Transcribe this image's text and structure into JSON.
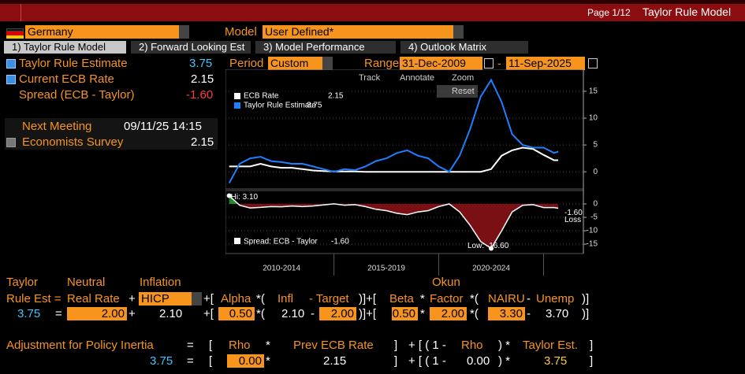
{
  "header": {
    "page": "Page 1/12",
    "title": "Taylor Rule Model"
  },
  "controls": {
    "country": "Germany",
    "model_label": "Model",
    "model": "User Defined*"
  },
  "tabs": [
    "1) Taylor Rule Model",
    "2) Forward Looking Est",
    "3) Model Performance",
    "4) Outlook Matrix"
  ],
  "summary": {
    "rows": [
      {
        "label": "Taylor Rule Estimate",
        "value": "3.75"
      },
      {
        "label": "Current ECB Rate",
        "value": "2.15"
      },
      {
        "label": "Spread (ECB - Taylor)",
        "value": "-1.60"
      }
    ],
    "next_meeting": {
      "label": "Next Meeting",
      "value": "09/11/25 14:15"
    },
    "survey": {
      "label": "Economists Survey",
      "value": "2.15"
    }
  },
  "chart_controls": {
    "period_label": "Period",
    "period": "Custom",
    "range_label": "Range",
    "start": "31-Dec-2009",
    "sep": "-",
    "end": "11-Sep-2025",
    "tools": [
      "Track",
      "Annotate",
      "Zoom"
    ],
    "reset": "Reset"
  },
  "chart": {
    "type": "line",
    "x": [
      2010,
      2010.5,
      2011,
      2011.5,
      2012,
      2012.5,
      2013,
      2013.5,
      2014,
      2014.5,
      2015,
      2015.5,
      2016,
      2016.5,
      2017,
      2017.5,
      2018,
      2018.5,
      2019,
      2019.5,
      2020,
      2020.5,
      2021,
      2021.5,
      2022,
      2022.5,
      2023,
      2023.5,
      2024,
      2024.5,
      2025,
      2025.5,
      2025.7
    ],
    "xlim": [
      2009.9,
      2026.9
    ],
    "xbands": [
      {
        "label": "2010-2014",
        "start": 2010,
        "end": 2015
      },
      {
        "label": "2015-2019",
        "start": 2015,
        "end": 2020
      },
      {
        "label": "2020-2024",
        "start": 2020,
        "end": 2025
      }
    ],
    "upper": {
      "ylim": [
        -3.2,
        19.1
      ],
      "yticks": [
        0,
        5,
        10,
        15
      ],
      "grid": true,
      "series": [
        {
          "name": "ECB Rate",
          "color": "#ffffff",
          "last": "2.15",
          "values": [
            1,
            1,
            1,
            1.5,
            1,
            0.75,
            0.75,
            0.5,
            0.25,
            0.15,
            0.05,
            0.05,
            0.05,
            0,
            0,
            0,
            0,
            0,
            0,
            0,
            0,
            0,
            0,
            0,
            0,
            0.5,
            3,
            4,
            4.5,
            4.25,
            3.15,
            2.15,
            2.15
          ]
        },
        {
          "name": "Taylor Rule Estimate",
          "color": "#1e7fff",
          "last": "3.75",
          "values": [
            -2.1,
            1.5,
            2.5,
            2.8,
            2,
            1.8,
            1.5,
            1.5,
            1,
            0.5,
            0,
            0.5,
            0.3,
            1,
            2,
            2.5,
            3.5,
            4,
            3,
            2.5,
            1,
            0,
            3,
            8,
            14,
            17.1,
            13,
            7,
            5,
            4.5,
            4.5,
            3.5,
            3.75
          ]
        }
      ]
    },
    "lower": {
      "ylim": [
        -18.5,
        5
      ],
      "yticks": [
        0,
        -5,
        -10,
        -15
      ],
      "grid": true,
      "series": [
        {
          "name": "Spread: ECB - Taylor",
          "color": "#ffffff",
          "last": "-1.60",
          "values": [
            3.1,
            -0.5,
            -1.5,
            -1.3,
            -1,
            -1.05,
            -0.75,
            -1,
            -0.75,
            -0.35,
            0.05,
            -0.45,
            -0.25,
            -1,
            -2,
            -2.5,
            -3.5,
            -4,
            -3,
            -2.5,
            -1,
            0,
            -3,
            -8,
            -14,
            -16.6,
            -10,
            -3,
            -0.5,
            -0.25,
            -1.35,
            -1.35,
            -1.6
          ]
        }
      ],
      "hi": "Hi: 3.10",
      "low": "Low: -16.60",
      "last_label": "-1.60",
      "loss": "Loss"
    }
  },
  "formula": {
    "rows": [
      [
        "Taylor",
        "Neutral",
        "Inflation",
        "Okun"
      ],
      [
        "Rule Est =",
        "Real Rate",
        "+",
        "HICP",
        "+[",
        "Alpha",
        "*(",
        "Infl",
        "- Target",
        ")]+[",
        "Beta",
        "*",
        "Factor",
        "*(",
        "NAIRU",
        "-",
        "Unemp",
        ")]"
      ],
      [
        "3.75",
        "=",
        "2.00",
        "+",
        "2.10",
        "+[",
        "0.50",
        "*(",
        "2.10",
        "-",
        "2.00",
        ")]+[",
        "0.50",
        "*",
        "2.00",
        "*(",
        "3.30",
        "-",
        "3.70",
        ")]"
      ],
      [
        "Adjustment for Policy Inertia",
        "=",
        "[",
        "Rho",
        "*",
        "Prev ECB Rate",
        "]",
        "+ [ ( 1 -",
        "Rho",
        ") *",
        "Taylor Est.",
        "]"
      ],
      [
        "3.75",
        "=",
        "[",
        "0.00",
        "*",
        "2.15",
        "]",
        "+ [ ( 1 -",
        "0.00",
        ") *",
        "3.75",
        "]"
      ]
    ]
  }
}
